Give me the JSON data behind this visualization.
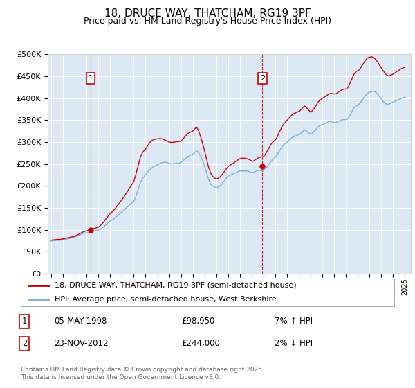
{
  "title": "18, DRUCE WAY, THATCHAM, RG19 3PF",
  "subtitle": "Price paid vs. HM Land Registry's House Price Index (HPI)",
  "legend_line1": "18, DRUCE WAY, THATCHAM, RG19 3PF (semi-detached house)",
  "legend_line2": "HPI: Average price, semi-detached house, West Berkshire",
  "annotation1_date": "05-MAY-1998",
  "annotation1_price": "£98,950",
  "annotation1_hpi": "7% ↑ HPI",
  "annotation2_date": "23-NOV-2012",
  "annotation2_price": "£244,000",
  "annotation2_hpi": "2% ↓ HPI",
  "footer": "Contains HM Land Registry data © Crown copyright and database right 2025.\nThis data is licensed under the Open Government Licence v3.0.",
  "background_color": "#dce9f5",
  "line_color_red": "#cc0000",
  "line_color_blue": "#7bafd4",
  "annotation_box_color": "#cc0000",
  "ylim_min": 0,
  "ylim_max": 500000,
  "yticks": [
    0,
    50000,
    100000,
    150000,
    200000,
    250000,
    300000,
    350000,
    400000,
    450000,
    500000
  ],
  "sale1_year": 1998.35,
  "sale1_price": 98950,
  "sale2_year": 2012.9,
  "sale2_price": 244000,
  "hpi_months": [
    1995.0,
    1995.08,
    1995.17,
    1995.25,
    1995.33,
    1995.42,
    1995.5,
    1995.58,
    1995.67,
    1995.75,
    1995.83,
    1995.92,
    1996.0,
    1996.08,
    1996.17,
    1996.25,
    1996.33,
    1996.42,
    1996.5,
    1996.58,
    1996.67,
    1996.75,
    1996.83,
    1996.92,
    1997.0,
    1997.08,
    1997.17,
    1997.25,
    1997.33,
    1997.42,
    1997.5,
    1997.58,
    1997.67,
    1997.75,
    1997.83,
    1997.92,
    1998.0,
    1998.08,
    1998.17,
    1998.25,
    1998.33,
    1998.42,
    1998.5,
    1998.58,
    1998.67,
    1998.75,
    1998.83,
    1998.92,
    1999.0,
    1999.08,
    1999.17,
    1999.25,
    1999.33,
    1999.42,
    1999.5,
    1999.58,
    1999.67,
    1999.75,
    1999.83,
    1999.92,
    2000.0,
    2000.08,
    2000.17,
    2000.25,
    2000.33,
    2000.42,
    2000.5,
    2000.58,
    2000.67,
    2000.75,
    2000.83,
    2000.92,
    2001.0,
    2001.08,
    2001.17,
    2001.25,
    2001.33,
    2001.42,
    2001.5,
    2001.58,
    2001.67,
    2001.75,
    2001.83,
    2001.92,
    2002.0,
    2002.08,
    2002.17,
    2002.25,
    2002.33,
    2002.42,
    2002.5,
    2002.58,
    2002.67,
    2002.75,
    2002.83,
    2002.92,
    2003.0,
    2003.08,
    2003.17,
    2003.25,
    2003.33,
    2003.42,
    2003.5,
    2003.58,
    2003.67,
    2003.75,
    2003.83,
    2003.92,
    2004.0,
    2004.08,
    2004.17,
    2004.25,
    2004.33,
    2004.42,
    2004.5,
    2004.58,
    2004.67,
    2004.75,
    2004.83,
    2004.92,
    2005.0,
    2005.08,
    2005.17,
    2005.25,
    2005.33,
    2005.42,
    2005.5,
    2005.58,
    2005.67,
    2005.75,
    2005.83,
    2005.92,
    2006.0,
    2006.08,
    2006.17,
    2006.25,
    2006.33,
    2006.42,
    2006.5,
    2006.58,
    2006.67,
    2006.75,
    2006.83,
    2006.92,
    2007.0,
    2007.08,
    2007.17,
    2007.25,
    2007.33,
    2007.42,
    2007.5,
    2007.58,
    2007.67,
    2007.75,
    2007.83,
    2007.92,
    2008.0,
    2008.08,
    2008.17,
    2008.25,
    2008.33,
    2008.42,
    2008.5,
    2008.58,
    2008.67,
    2008.75,
    2008.83,
    2008.92,
    2009.0,
    2009.08,
    2009.17,
    2009.25,
    2009.33,
    2009.42,
    2009.5,
    2009.58,
    2009.67,
    2009.75,
    2009.83,
    2009.92,
    2010.0,
    2010.08,
    2010.17,
    2010.25,
    2010.33,
    2010.42,
    2010.5,
    2010.58,
    2010.67,
    2010.75,
    2010.83,
    2010.92,
    2011.0,
    2011.08,
    2011.17,
    2011.25,
    2011.33,
    2011.42,
    2011.5,
    2011.58,
    2011.67,
    2011.75,
    2011.83,
    2011.92,
    2012.0,
    2012.08,
    2012.17,
    2012.25,
    2012.33,
    2012.42,
    2012.5,
    2012.58,
    2012.67,
    2012.75,
    2012.83,
    2012.92,
    2013.0,
    2013.08,
    2013.17,
    2013.25,
    2013.33,
    2013.42,
    2013.5,
    2013.58,
    2013.67,
    2013.75,
    2013.83,
    2013.92,
    2014.0,
    2014.08,
    2014.17,
    2014.25,
    2014.33,
    2014.42,
    2014.5,
    2014.58,
    2014.67,
    2014.75,
    2014.83,
    2014.92,
    2015.0,
    2015.08,
    2015.17,
    2015.25,
    2015.33,
    2015.42,
    2015.5,
    2015.58,
    2015.67,
    2015.75,
    2015.83,
    2015.92,
    2016.0,
    2016.08,
    2016.17,
    2016.25,
    2016.33,
    2016.42,
    2016.5,
    2016.58,
    2016.67,
    2016.75,
    2016.83,
    2016.92,
    2017.0,
    2017.08,
    2017.17,
    2017.25,
    2017.33,
    2017.42,
    2017.5,
    2017.58,
    2017.67,
    2017.75,
    2017.83,
    2017.92,
    2018.0,
    2018.08,
    2018.17,
    2018.25,
    2018.33,
    2018.42,
    2018.5,
    2018.58,
    2018.67,
    2018.75,
    2018.83,
    2018.92,
    2019.0,
    2019.08,
    2019.17,
    2019.25,
    2019.33,
    2019.42,
    2019.5,
    2019.58,
    2019.67,
    2019.75,
    2019.83,
    2019.92,
    2020.0,
    2020.08,
    2020.17,
    2020.25,
    2020.33,
    2020.42,
    2020.5,
    2020.58,
    2020.67,
    2020.75,
    2020.83,
    2020.92,
    2021.0,
    2021.08,
    2021.17,
    2021.25,
    2021.33,
    2021.42,
    2021.5,
    2021.58,
    2021.67,
    2021.75,
    2021.83,
    2021.92,
    2022.0,
    2022.08,
    2022.17,
    2022.25,
    2022.33,
    2022.42,
    2022.5,
    2022.58,
    2022.67,
    2022.75,
    2022.83,
    2022.92,
    2023.0,
    2023.08,
    2023.17,
    2023.25,
    2023.33,
    2023.42,
    2023.5,
    2023.58,
    2023.67,
    2023.75,
    2023.83,
    2023.92,
    2024.0,
    2024.08,
    2024.17,
    2024.25,
    2024.33,
    2024.42,
    2024.5,
    2024.58,
    2024.67,
    2024.75,
    2024.83,
    2024.92,
    2025.0
  ],
  "hpi_values": [
    74000,
    74500,
    75000,
    74800,
    75200,
    75500,
    75800,
    76000,
    75600,
    75800,
    76200,
    76500,
    77000,
    77500,
    78000,
    78500,
    79000,
    79500,
    80000,
    80500,
    81000,
    81500,
    82000,
    82500,
    83000,
    84000,
    85000,
    86000,
    87000,
    88000,
    89000,
    90000,
    91000,
    91500,
    92000,
    92500,
    93000,
    93500,
    94000,
    94500,
    95000,
    95500,
    96000,
    96500,
    97000,
    97500,
    98000,
    98500,
    99000,
    100000,
    101500,
    103000,
    104500,
    106000,
    108000,
    110000,
    112000,
    114000,
    116000,
    118000,
    120000,
    121000,
    122000,
    123500,
    125000,
    127000,
    129000,
    131000,
    133000,
    135000,
    137000,
    139000,
    141000,
    143000,
    145000,
    147000,
    149000,
    151000,
    153000,
    155000,
    157000,
    159000,
    161000,
    163000,
    165000,
    170000,
    175000,
    182000,
    188000,
    195000,
    202000,
    208000,
    213000,
    217000,
    220000,
    223000,
    225000,
    228000,
    231000,
    234000,
    236000,
    238000,
    240000,
    242000,
    244000,
    245000,
    246000,
    247000,
    248000,
    249000,
    250000,
    251000,
    252000,
    253000,
    253500,
    254000,
    254000,
    253500,
    253000,
    252000,
    251000,
    250500,
    250000,
    250000,
    250500,
    251000,
    251000,
    251500,
    252000,
    252000,
    252000,
    252500,
    253000,
    255000,
    257000,
    259000,
    261000,
    263000,
    265000,
    267000,
    268000,
    269000,
    270000,
    271000,
    272000,
    274000,
    276000,
    278000,
    280000,
    278000,
    276000,
    272000,
    268000,
    263000,
    258000,
    252000,
    245000,
    238000,
    231000,
    223000,
    216000,
    210000,
    205000,
    202000,
    200000,
    199000,
    198000,
    197000,
    196000,
    196000,
    197000,
    198000,
    200000,
    202000,
    205000,
    208000,
    211000,
    214000,
    217000,
    220000,
    222000,
    223000,
    224000,
    225000,
    226000,
    227000,
    228000,
    229000,
    230000,
    231000,
    232000,
    233000,
    234000,
    234000,
    234000,
    234000,
    234000,
    234000,
    234000,
    234000,
    234000,
    233000,
    232000,
    231000,
    230000,
    230000,
    231000,
    232000,
    233000,
    234000,
    235000,
    235000,
    235000,
    235000,
    235000,
    235500,
    236000,
    238000,
    240000,
    242000,
    245000,
    248000,
    251000,
    254000,
    257000,
    259000,
    261000,
    263000,
    265000,
    268000,
    271000,
    275000,
    279000,
    283000,
    286000,
    289000,
    292000,
    294000,
    296000,
    298000,
    300000,
    302000,
    304000,
    306000,
    308000,
    310000,
    311000,
    312000,
    313000,
    314000,
    315000,
    316000,
    317000,
    318000,
    320000,
    322000,
    324000,
    326000,
    327000,
    326000,
    325000,
    323000,
    321000,
    319000,
    318000,
    319000,
    321000,
    323000,
    325000,
    327000,
    330000,
    333000,
    335000,
    337000,
    338000,
    339000,
    340000,
    341000,
    342000,
    343000,
    344000,
    345000,
    346000,
    347000,
    347000,
    347000,
    346000,
    345000,
    344000,
    344000,
    345000,
    346000,
    347000,
    348000,
    349000,
    350000,
    350500,
    351000,
    351000,
    351000,
    351000,
    352000,
    354000,
    357000,
    361000,
    365000,
    369000,
    373000,
    377000,
    380000,
    382000,
    383000,
    384000,
    386000,
    388000,
    391000,
    394000,
    397000,
    400000,
    403000,
    406000,
    409000,
    411000,
    412000,
    413000,
    414000,
    415000,
    416000,
    416000,
    415000,
    414000,
    412000,
    410000,
    407000,
    404000,
    401000,
    398000,
    395000,
    392000,
    390000,
    388000,
    387000,
    386000,
    386000,
    387000,
    388000,
    389000,
    390000,
    391000,
    392000,
    393000,
    394000,
    395000,
    396000,
    397000,
    398000,
    399000,
    400000,
    401000,
    402000,
    403000
  ],
  "red_values": [
    76000,
    76500,
    77000,
    76800,
    77200,
    77500,
    77800,
    78000,
    77600,
    77800,
    78200,
    78500,
    79000,
    79500,
    80000,
    80500,
    81000,
    81500,
    82000,
    82500,
    83000,
    83500,
    84000,
    84500,
    85000,
    86200,
    87400,
    88600,
    89800,
    91000,
    92200,
    93400,
    94600,
    95300,
    96000,
    96700,
    97400,
    98100,
    98800,
    99500,
    100200,
    100900,
    101600,
    102300,
    103000,
    103700,
    104400,
    105100,
    105800,
    107500,
    109700,
    112000,
    114200,
    116500,
    119500,
    122500,
    125500,
    128500,
    131500,
    134500,
    137500,
    139000,
    140500,
    142500,
    145000,
    148000,
    151000,
    154000,
    157000,
    160000,
    163000,
    166000,
    169000,
    172000,
    175000,
    178500,
    182000,
    185500,
    189000,
    192500,
    196000,
    199500,
    203000,
    206500,
    210000,
    217000,
    225000,
    234000,
    242000,
    251000,
    260000,
    267000,
    272000,
    276000,
    279000,
    282000,
    284000,
    287500,
    291000,
    294500,
    298000,
    300500,
    302500,
    304000,
    305000,
    306000,
    306500,
    307000,
    307000,
    307500,
    308000,
    308000,
    307500,
    307000,
    306000,
    305000,
    304000,
    303000,
    302000,
    301000,
    300000,
    299500,
    299000,
    299000,
    299500,
    300000,
    300000,
    300500,
    301000,
    301000,
    301000,
    301500,
    302000,
    304500,
    307000,
    309500,
    312000,
    314500,
    317000,
    319500,
    321000,
    322000,
    323000,
    324000,
    325000,
    327500,
    330000,
    332000,
    334000,
    330000,
    325000,
    319000,
    312000,
    305000,
    297000,
    289000,
    280000,
    271000,
    262000,
    253000,
    244000,
    237000,
    231000,
    226000,
    222000,
    220000,
    218000,
    217000,
    216000,
    216000,
    217500,
    219000,
    221000,
    223500,
    226000,
    229000,
    232000,
    235000,
    238000,
    241000,
    244000,
    245500,
    247000,
    248500,
    250000,
    251500,
    253000,
    254500,
    256000,
    257500,
    259000,
    260500,
    262000,
    262500,
    263000,
    263000,
    263000,
    263000,
    262500,
    262000,
    261500,
    260500,
    259500,
    258000,
    256500,
    256000,
    257000,
    258500,
    260000,
    261500,
    263000,
    264000,
    265000,
    265500,
    266000,
    266500,
    267000,
    269500,
    272500,
    276000,
    280000,
    284000,
    288000,
    292000,
    296000,
    298500,
    300500,
    302500,
    304500,
    308000,
    312000,
    317000,
    322000,
    327000,
    331500,
    335500,
    339000,
    342000,
    344500,
    347000,
    349500,
    352000,
    354500,
    357000,
    359500,
    362000,
    363500,
    365000,
    366000,
    367000,
    368000,
    369000,
    370000,
    371000,
    373500,
    376000,
    378500,
    381000,
    382000,
    380000,
    378000,
    375500,
    373000,
    370500,
    368000,
    369500,
    372000,
    375000,
    378000,
    381000,
    385000,
    389000,
    392000,
    395000,
    396500,
    398000,
    399500,
    401000,
    402500,
    404000,
    405500,
    407000,
    408500,
    410000,
    410500,
    411000,
    410500,
    410000,
    409500,
    409500,
    410500,
    412000,
    413500,
    415000,
    416500,
    418000,
    419000,
    420000,
    420500,
    421000,
    421000,
    422000,
    425000,
    429000,
    434000,
    439000,
    444000,
    449000,
    454000,
    457500,
    460000,
    461500,
    462500,
    464000,
    466000,
    469500,
    473000,
    476500,
    480000,
    483500,
    487000,
    490000,
    492000,
    493000,
    493500,
    494000,
    494500,
    494000,
    493000,
    491000,
    489000,
    486000,
    483000,
    479500,
    476000,
    472500,
    469000,
    465500,
    462000,
    459000,
    456000,
    454000,
    452000,
    451000,
    451000,
    452000,
    453000,
    454000,
    455000,
    456500,
    458000,
    459500,
    461000,
    462500,
    464000,
    465500,
    467000,
    468000,
    469000,
    470000,
    471000
  ]
}
